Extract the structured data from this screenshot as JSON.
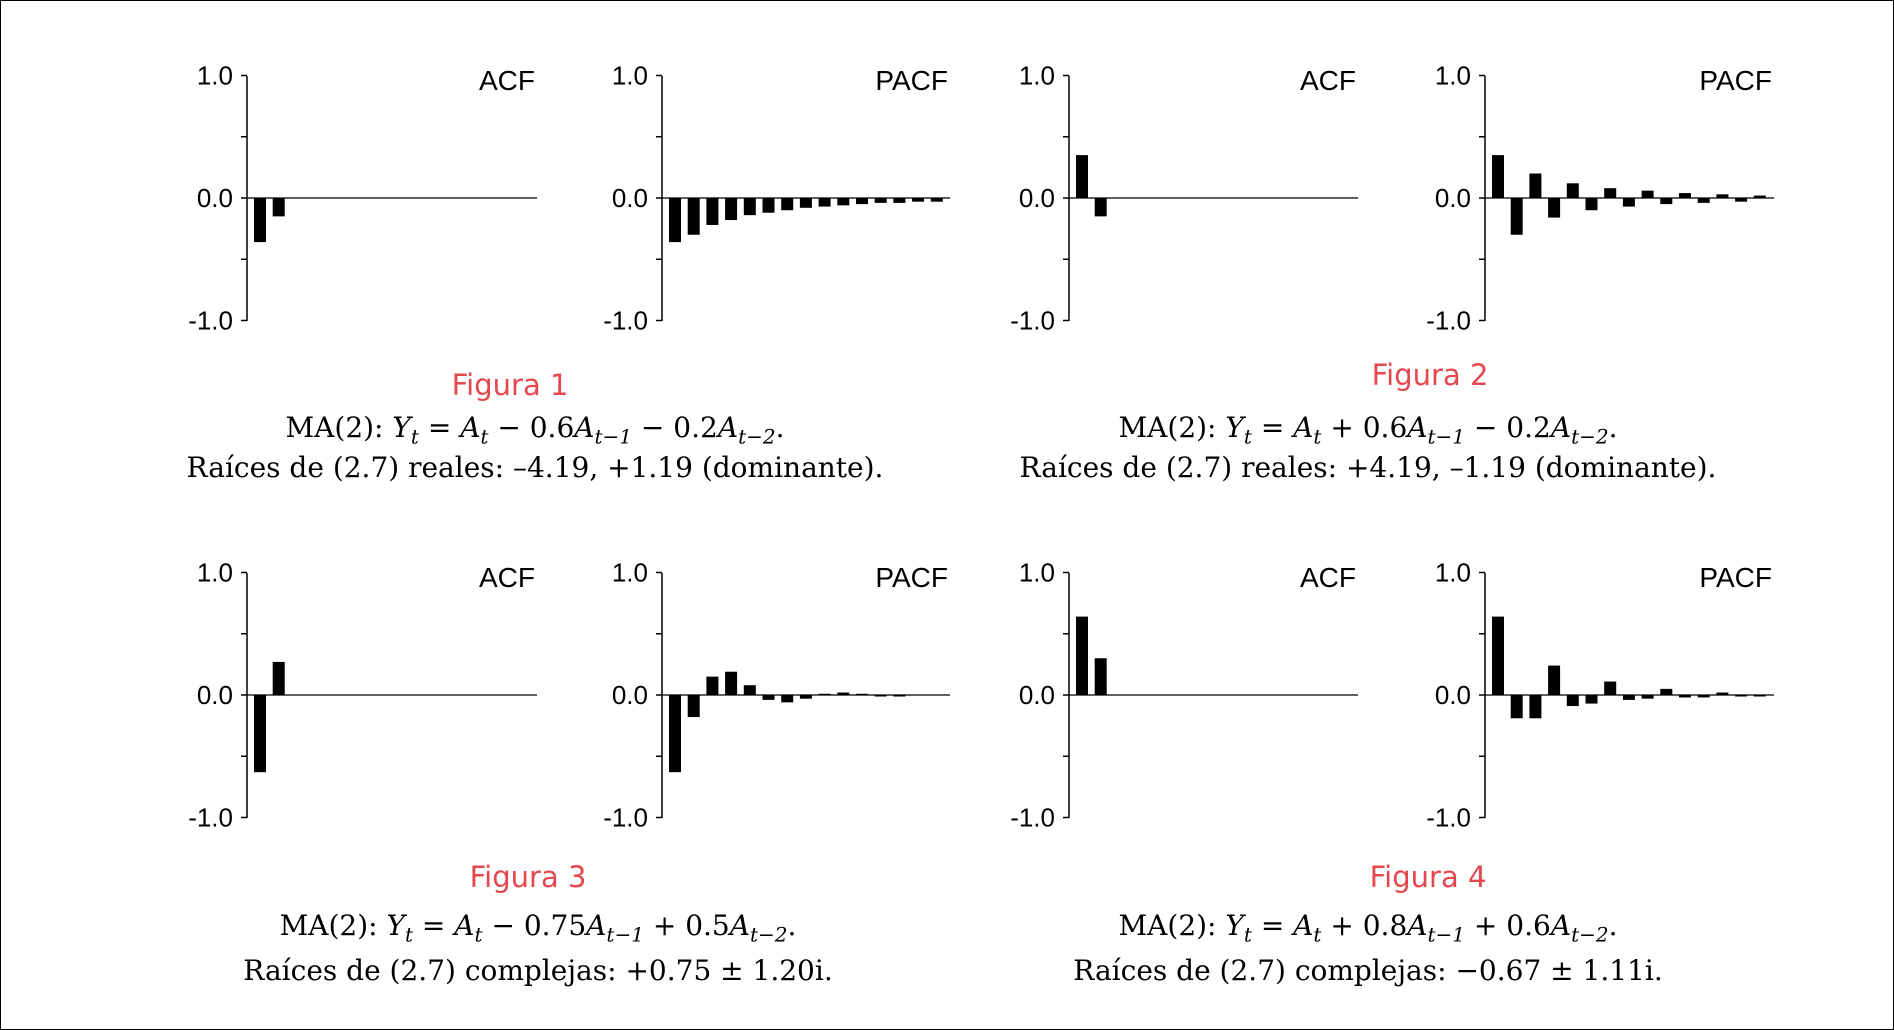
{
  "chart_data": [
    {
      "type": "bar",
      "title": "ACF",
      "ylim": [
        -1,
        1
      ],
      "yticks": [
        "1.0",
        "0.0",
        "-1.0"
      ],
      "lags": [
        1,
        2,
        3,
        4,
        5,
        6,
        7,
        8,
        9,
        10,
        11,
        12,
        13,
        14,
        15
      ],
      "values": [
        -0.36,
        -0.15,
        0,
        0,
        0,
        0,
        0,
        0,
        0,
        0,
        0,
        0,
        0,
        0,
        0
      ]
    },
    {
      "type": "bar",
      "title": "PACF",
      "ylim": [
        -1,
        1
      ],
      "yticks": [
        "1.0",
        "0.0",
        "-1.0"
      ],
      "lags": [
        1,
        2,
        3,
        4,
        5,
        6,
        7,
        8,
        9,
        10,
        11,
        12,
        13,
        14,
        15
      ],
      "values": [
        -0.36,
        -0.3,
        -0.22,
        -0.18,
        -0.14,
        -0.12,
        -0.1,
        -0.08,
        -0.07,
        -0.06,
        -0.05,
        -0.04,
        -0.04,
        -0.03,
        -0.03
      ]
    },
    {
      "type": "bar",
      "title": "ACF",
      "ylim": [
        -1,
        1
      ],
      "yticks": [
        "1.0",
        "0.0",
        "-1.0"
      ],
      "lags": [
        1,
        2,
        3,
        4,
        5,
        6,
        7,
        8,
        9,
        10,
        11,
        12,
        13,
        14,
        15
      ],
      "values": [
        0.35,
        -0.15,
        0,
        0,
        0,
        0,
        0,
        0,
        0,
        0,
        0,
        0,
        0,
        0,
        0
      ]
    },
    {
      "type": "bar",
      "title": "PACF",
      "ylim": [
        -1,
        1
      ],
      "yticks": [
        "1.0",
        "0.0",
        "-1.0"
      ],
      "lags": [
        1,
        2,
        3,
        4,
        5,
        6,
        7,
        8,
        9,
        10,
        11,
        12,
        13,
        14,
        15
      ],
      "values": [
        0.35,
        -0.3,
        0.2,
        -0.16,
        0.12,
        -0.1,
        0.08,
        -0.07,
        0.06,
        -0.05,
        0.04,
        -0.04,
        0.03,
        -0.03,
        0.02
      ]
    },
    {
      "type": "bar",
      "title": "ACF",
      "ylim": [
        -1,
        1
      ],
      "yticks": [
        "1.0",
        "0.0",
        "-1.0"
      ],
      "lags": [
        1,
        2,
        3,
        4,
        5,
        6,
        7,
        8,
        9,
        10,
        11,
        12,
        13,
        14,
        15
      ],
      "values": [
        -0.63,
        0.27,
        0,
        0,
        0,
        0,
        0,
        0,
        0,
        0,
        0,
        0,
        0,
        0,
        0
      ]
    },
    {
      "type": "bar",
      "title": "PACF",
      "ylim": [
        -1,
        1
      ],
      "yticks": [
        "1.0",
        "0.0",
        "-1.0"
      ],
      "lags": [
        1,
        2,
        3,
        4,
        5,
        6,
        7,
        8,
        9,
        10,
        11,
        12,
        13,
        14,
        15
      ],
      "values": [
        -0.63,
        -0.18,
        0.15,
        0.19,
        0.08,
        -0.04,
        -0.06,
        -0.03,
        0.01,
        0.02,
        0.01,
        -0.01,
        -0.01,
        0,
        0
      ]
    },
    {
      "type": "bar",
      "title": "ACF",
      "ylim": [
        -1,
        1
      ],
      "yticks": [
        "1.0",
        "0.0",
        "-1.0"
      ],
      "lags": [
        1,
        2,
        3,
        4,
        5,
        6,
        7,
        8,
        9,
        10,
        11,
        12,
        13,
        14,
        15
      ],
      "values": [
        0.64,
        0.3,
        0,
        0,
        0,
        0,
        0,
        0,
        0,
        0,
        0,
        0,
        0,
        0,
        0
      ]
    },
    {
      "type": "bar",
      "title": "PACF",
      "ylim": [
        -1,
        1
      ],
      "yticks": [
        "1.0",
        "0.0",
        "-1.0"
      ],
      "lags": [
        1,
        2,
        3,
        4,
        5,
        6,
        7,
        8,
        9,
        10,
        11,
        12,
        13,
        14,
        15
      ],
      "values": [
        0.64,
        -0.19,
        -0.19,
        0.24,
        -0.09,
        -0.07,
        0.11,
        -0.04,
        -0.03,
        0.05,
        -0.02,
        -0.02,
        0.02,
        -0.01,
        -0.01
      ]
    }
  ],
  "figures": [
    {
      "label": "Figura 1",
      "formula": {
        "pre": "MA(2): ",
        "Y": "Y",
        "sub_t": "t",
        "eq": " = ",
        "A": "A",
        "op1": " − 0.6",
        "A1": "A",
        "sub1": "t−1",
        "op2": " − 0.2",
        "A2": "A",
        "sub2": "t−2",
        "end": "."
      },
      "roots": "Raíces de (2.7) reales: –4.19, +1.19 (dominante)."
    },
    {
      "label": "Figura 2",
      "formula": {
        "pre": "MA(2): ",
        "Y": "Y",
        "sub_t": "t",
        "eq": " = ",
        "A": "A",
        "op1": " + 0.6",
        "A1": "A",
        "sub1": "t−1",
        "op2": " − 0.2",
        "A2": "A",
        "sub2": "t−2",
        "end": "."
      },
      "roots": "Raíces de (2.7) reales: +4.19, –1.19 (dominante)."
    },
    {
      "label": "Figura 3",
      "formula": {
        "pre": "MA(2): ",
        "Y": "Y",
        "sub_t": "t",
        "eq": " = ",
        "A": "A",
        "op1": " − 0.75",
        "A1": "A",
        "sub1": "t−1",
        "op2": " + 0.5",
        "A2": "A",
        "sub2": "t−2",
        "end": "."
      },
      "roots": "Raíces de (2.7) complejas: +0.75 ± 1.20i."
    },
    {
      "label": "Figura 4",
      "formula": {
        "pre": "MA(2): ",
        "Y": "Y",
        "sub_t": "t",
        "eq": " = ",
        "A": "A",
        "op1": " + 0.8",
        "A1": "A",
        "sub1": "t−1",
        "op2": " + 0.6",
        "A2": "A",
        "sub2": "t−2",
        "end": "."
      },
      "roots": "Raíces de (2.7) complejas: −0.67 ± 1.11i."
    }
  ]
}
